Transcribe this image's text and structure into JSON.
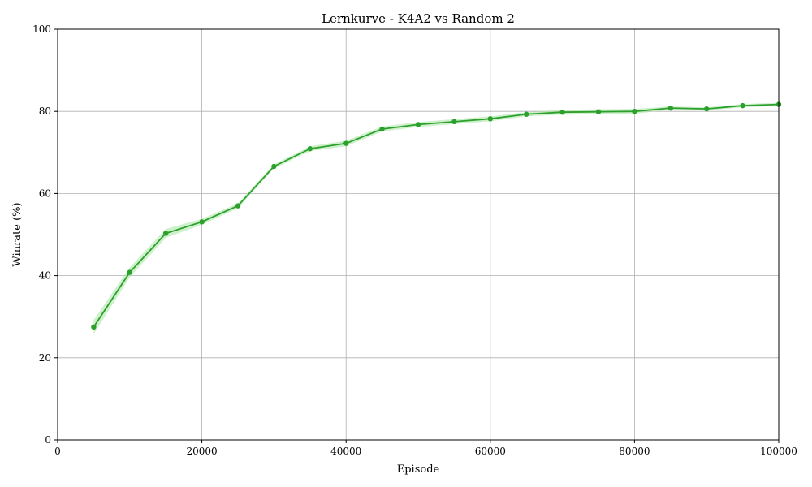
{
  "chart_data": {
    "type": "line",
    "title": "Lernkurve - K4A2 vs Random 2",
    "xlabel": "Episode",
    "ylabel": "Winrate (%)",
    "xlim": [
      0,
      100000
    ],
    "ylim": [
      0,
      100
    ],
    "x_ticks": [
      0,
      20000,
      40000,
      60000,
      80000,
      100000
    ],
    "y_ticks": [
      0,
      20,
      40,
      60,
      80,
      100
    ],
    "grid": true,
    "line_color": "#2ca02c",
    "band_color": "#a6e3a1",
    "series": [
      {
        "x": [
          5000,
          10000,
          15000,
          20000,
          25000,
          30000,
          35000,
          40000,
          45000,
          50000,
          55000,
          60000,
          65000,
          70000,
          75000,
          80000,
          85000,
          90000,
          95000,
          100000
        ],
        "values": [
          27.5,
          40.8,
          50.3,
          53.1,
          57.0,
          66.6,
          70.9,
          72.2,
          75.7,
          76.8,
          77.5,
          78.2,
          79.3,
          79.8,
          79.9,
          80.0,
          80.8,
          80.6,
          81.4,
          81.7
        ],
        "band_lower": [
          25.8,
          39.6,
          49.2,
          52.4,
          56.4,
          66.1,
          70.3,
          71.5,
          75.1,
          76.2,
          76.9,
          77.6,
          78.8,
          79.2,
          79.3,
          79.4,
          80.4,
          80.2,
          81.0,
          81.3
        ],
        "band_upper": [
          29.2,
          42.0,
          51.4,
          53.8,
          57.6,
          67.1,
          71.5,
          72.9,
          76.3,
          77.4,
          78.1,
          78.8,
          79.8,
          80.4,
          80.5,
          80.6,
          81.2,
          81.0,
          81.8,
          82.1
        ]
      }
    ]
  }
}
